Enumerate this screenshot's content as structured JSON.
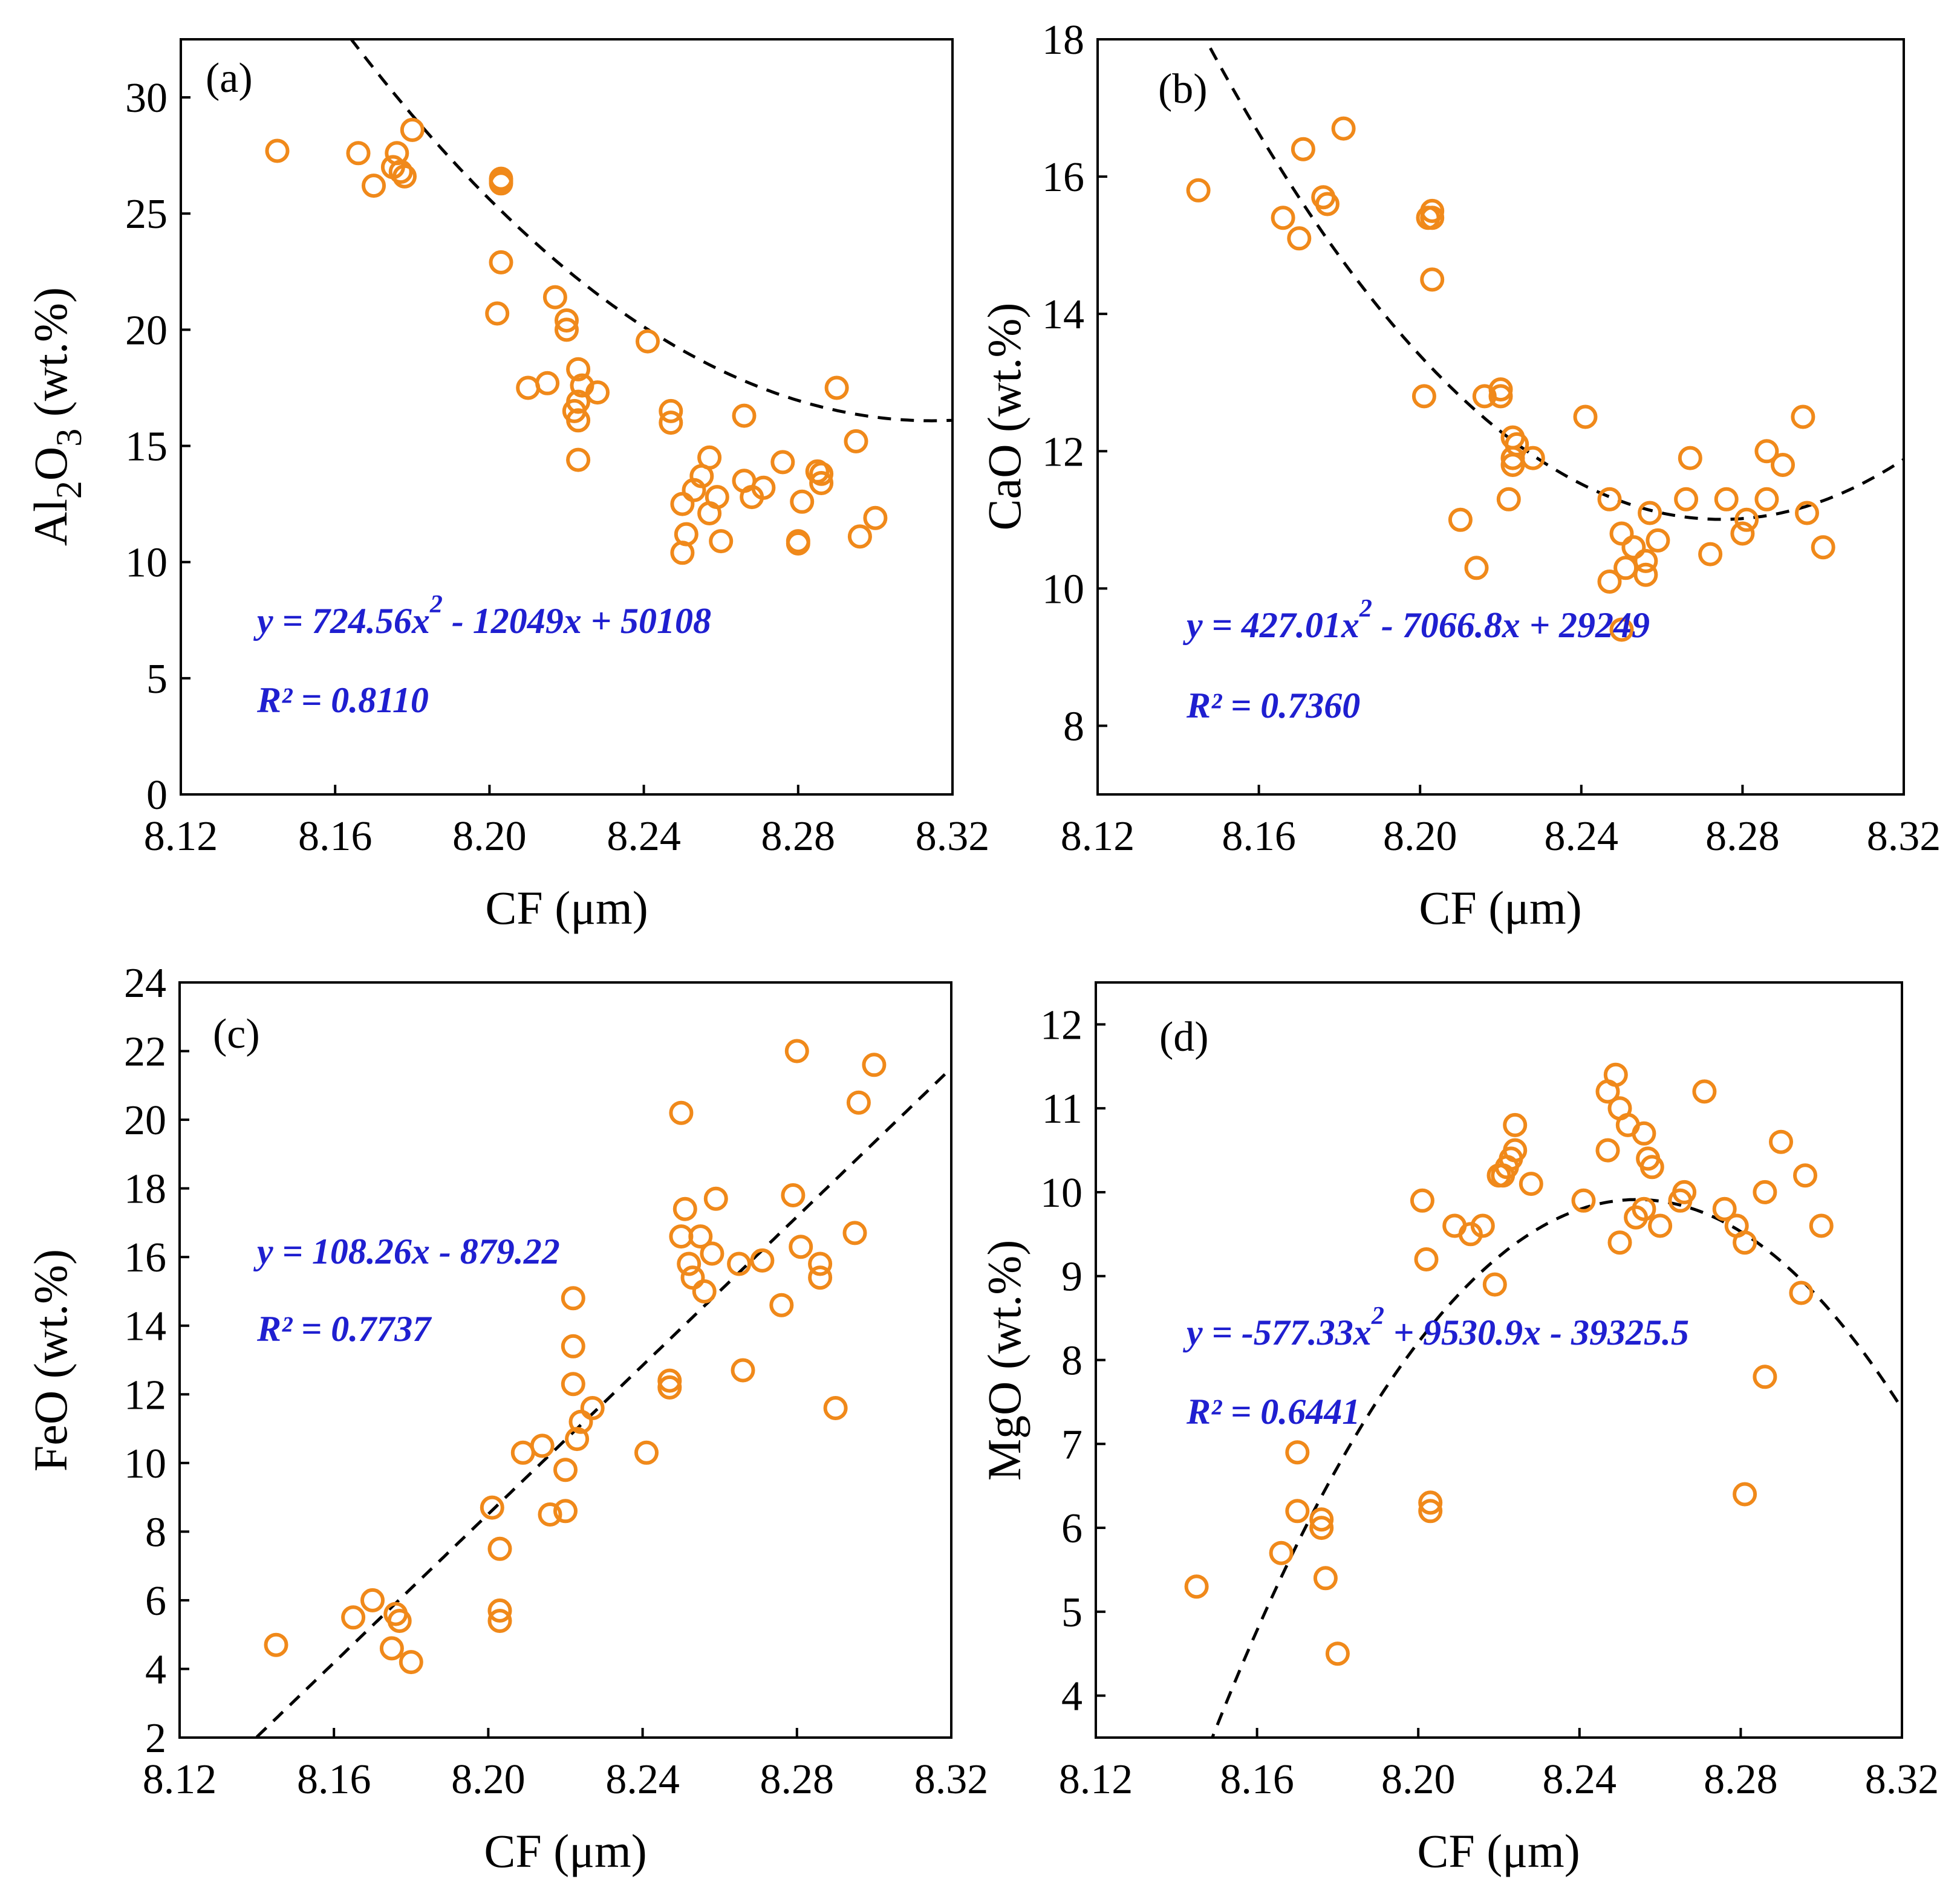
{
  "chart_data": [
    {
      "type": "scatter",
      "panel_label": "(a)",
      "xlabel": "CF (μm)",
      "ylabel": {
        "prefix": "Al",
        "sub1": "2",
        "mid": "O",
        "sub2": "3",
        "suffix": " (wt.%)"
      },
      "xlim": [
        8.12,
        8.32
      ],
      "ylim": [
        0,
        32.5
      ],
      "xticks": [
        "8.12",
        "8.16",
        "8.20",
        "8.24",
        "8.28",
        "8.32"
      ],
      "xtick_values": [
        8.12,
        8.16,
        8.2,
        8.24,
        8.28,
        8.32
      ],
      "yticks": [
        "0",
        "5",
        "10",
        "15",
        "20",
        "25",
        "30"
      ],
      "ytick_values": [
        0,
        5,
        10,
        15,
        20,
        25,
        30
      ],
      "marker_color": "#f0891a",
      "equation_color": "#1f1fd0",
      "equation": {
        "main": "y = 724.56x",
        "sup": "2",
        "rest": " - 12049x + 50108"
      },
      "r2": "R² = 0.8110",
      "fit": {
        "kind": "quadratic",
        "coeffs": [
          724.56,
          -12049,
          50108
        ],
        "x_range": [
          8.14,
          8.32
        ]
      },
      "x": [
        8.145,
        8.166,
        8.17,
        8.175,
        8.176,
        8.177,
        8.178,
        8.18,
        8.203,
        8.203,
        8.203,
        8.203,
        8.202,
        8.21,
        8.215,
        8.217,
        8.22,
        8.22,
        8.223,
        8.223,
        8.224,
        8.228,
        8.222,
        8.223,
        8.223,
        8.241,
        8.247,
        8.247,
        8.25,
        8.251,
        8.25,
        8.253,
        8.255,
        8.257,
        8.257,
        8.259,
        8.26,
        8.266,
        8.266,
        8.268,
        8.271,
        8.276,
        8.28,
        8.28,
        8.281,
        8.285,
        8.286,
        8.286,
        8.29,
        8.295,
        8.296,
        8.3
      ],
      "y": [
        27.7,
        27.6,
        26.2,
        27.0,
        27.6,
        26.8,
        26.6,
        28.6,
        26.5,
        26.4,
        26.3,
        22.9,
        20.7,
        17.5,
        17.7,
        21.4,
        20.4,
        20.0,
        18.3,
        16.9,
        17.6,
        17.3,
        16.5,
        16.1,
        14.4,
        19.5,
        16.5,
        16.0,
        10.4,
        11.2,
        12.5,
        13.1,
        13.7,
        14.5,
        12.1,
        12.8,
        10.9,
        16.3,
        13.5,
        12.8,
        13.2,
        14.3,
        10.8,
        10.9,
        12.6,
        13.9,
        13.4,
        13.8,
        17.5,
        15.2,
        11.1,
        11.9
      ]
    },
    {
      "type": "scatter",
      "panel_label": "(b)",
      "xlabel": "CF (μm)",
      "ylabel": "CaO (wt.%)",
      "xlim": [
        8.12,
        8.32
      ],
      "ylim": [
        7,
        18
      ],
      "xticks": [
        "8.12",
        "8.16",
        "8.20",
        "8.24",
        "8.28",
        "8.32"
      ],
      "xtick_values": [
        8.12,
        8.16,
        8.2,
        8.24,
        8.28,
        8.32
      ],
      "yticks": [
        "8",
        "10",
        "12",
        "14",
        "16",
        "18"
      ],
      "ytick_values": [
        8,
        10,
        12,
        14,
        16,
        18
      ],
      "marker_color": "#f0891a",
      "equation_color": "#1f1fd0",
      "equation": {
        "main": "y = 427.01x",
        "sup": "2",
        "rest": " - 7066.8x + 29249"
      },
      "r2": "R² = 0.7360",
      "fit": {
        "kind": "quadratic",
        "coeffs": [
          427.01,
          -7066.8,
          29249
        ],
        "x_range": [
          8.14,
          8.32
        ]
      },
      "x": [
        8.145,
        8.166,
        8.17,
        8.171,
        8.176,
        8.177,
        8.181,
        8.202,
        8.203,
        8.203,
        8.203,
        8.201,
        8.21,
        8.214,
        8.216,
        8.22,
        8.22,
        8.223,
        8.223,
        8.223,
        8.224,
        8.228,
        8.222,
        8.241,
        8.247,
        8.247,
        8.25,
        8.251,
        8.25,
        8.253,
        8.256,
        8.256,
        8.257,
        8.259,
        8.266,
        8.267,
        8.272,
        8.276,
        8.28,
        8.281,
        8.286,
        8.286,
        8.29,
        8.295,
        8.296,
        8.3
      ],
      "y": [
        15.8,
        15.4,
        15.1,
        16.4,
        15.7,
        15.6,
        16.7,
        15.4,
        15.5,
        14.5,
        15.4,
        12.8,
        11.0,
        10.3,
        12.8,
        12.8,
        12.9,
        12.2,
        11.9,
        11.8,
        12.1,
        11.9,
        11.3,
        12.5,
        11.3,
        10.1,
        9.4,
        10.3,
        10.8,
        10.6,
        10.2,
        10.4,
        11.1,
        10.7,
        11.3,
        11.9,
        10.5,
        11.3,
        10.8,
        11.0,
        11.3,
        12.0,
        11.8,
        12.5,
        11.1,
        10.6
      ]
    },
    {
      "type": "scatter",
      "panel_label": "(c)",
      "xlabel": "CF (μm)",
      "ylabel": "FeO (wt.%)",
      "xlim": [
        8.12,
        8.32
      ],
      "ylim": [
        2,
        24
      ],
      "xticks": [
        "8.12",
        "8.16",
        "8.20",
        "8.24",
        "8.28",
        "8.32"
      ],
      "xtick_values": [
        8.12,
        8.16,
        8.2,
        8.24,
        8.28,
        8.32
      ],
      "yticks": [
        "2",
        "4",
        "6",
        "8",
        "10",
        "12",
        "14",
        "16",
        "18",
        "20",
        "22",
        "24"
      ],
      "ytick_values": [
        2,
        4,
        6,
        8,
        10,
        12,
        14,
        16,
        18,
        20,
        22,
        24
      ],
      "marker_color": "#f0891a",
      "equation_color": "#1f1fd0",
      "equation": {
        "main": "y =  108.26x - 879.22",
        "sup": "",
        "rest": ""
      },
      "r2": "R² = 0.7737",
      "fit": {
        "kind": "linear",
        "coeffs": [
          108.26,
          -879.22
        ],
        "x_range": [
          8.14,
          8.32
        ]
      },
      "x": [
        8.145,
        8.165,
        8.17,
        8.175,
        8.176,
        8.177,
        8.18,
        8.201,
        8.203,
        8.203,
        8.203,
        8.209,
        8.214,
        8.216,
        8.22,
        8.22,
        8.222,
        8.222,
        8.222,
        8.223,
        8.224,
        8.227,
        8.241,
        8.247,
        8.247,
        8.25,
        8.25,
        8.251,
        8.252,
        8.253,
        8.255,
        8.256,
        8.258,
        8.259,
        8.265,
        8.266,
        8.271,
        8.276,
        8.279,
        8.28,
        8.281,
        8.286,
        8.286,
        8.29,
        8.295,
        8.296,
        8.3
      ],
      "y": [
        4.7,
        5.5,
        6.0,
        4.6,
        5.6,
        5.4,
        4.2,
        8.7,
        7.5,
        5.7,
        5.4,
        10.3,
        10.5,
        8.5,
        9.8,
        8.6,
        14.8,
        13.4,
        12.3,
        10.7,
        11.2,
        11.6,
        10.3,
        12.4,
        12.2,
        20.2,
        16.6,
        17.4,
        15.8,
        15.4,
        16.6,
        15.0,
        16.1,
        17.7,
        15.8,
        12.7,
        15.9,
        14.6,
        17.8,
        22.0,
        16.3,
        15.8,
        15.4,
        11.6,
        16.7,
        20.5,
        21.6
      ]
    },
    {
      "type": "scatter",
      "panel_label": "(d)",
      "xlabel": "CF (μm)",
      "ylabel": "MgO (wt.%)",
      "xlim": [
        8.12,
        8.32
      ],
      "ylim": [
        3.5,
        12.5
      ],
      "xticks": [
        "8.12",
        "8.16",
        "8.20",
        "8.24",
        "8.28",
        "8.32"
      ],
      "xtick_values": [
        8.12,
        8.16,
        8.2,
        8.24,
        8.28,
        8.32
      ],
      "yticks": [
        "4",
        "5",
        "6",
        "7",
        "8",
        "9",
        "10",
        "11",
        "12"
      ],
      "ytick_values": [
        4,
        5,
        6,
        7,
        8,
        9,
        10,
        11,
        12
      ],
      "marker_color": "#f0891a",
      "equation_color": "#1f1fd0",
      "equation": {
        "main": "y = -577.33x",
        "sup": "2",
        "rest": " + 9530.9x - 39325.5"
      },
      "r2": "R² = 0.6441",
      "fit": {
        "kind": "quadratic",
        "coeffs": [
          -577.33,
          9530.9,
          -39325.5
        ],
        "x_range": [
          8.14,
          8.32
        ]
      },
      "x": [
        8.145,
        8.166,
        8.17,
        8.17,
        8.176,
        8.176,
        8.177,
        8.18,
        8.201,
        8.202,
        8.203,
        8.203,
        8.209,
        8.213,
        8.216,
        8.219,
        8.22,
        8.221,
        8.222,
        8.223,
        8.224,
        8.224,
        8.228,
        8.241,
        8.247,
        8.247,
        8.249,
        8.25,
        8.25,
        8.252,
        8.254,
        8.256,
        8.256,
        8.257,
        8.258,
        8.26,
        8.265,
        8.266,
        8.271,
        8.276,
        8.279,
        8.281,
        8.281,
        8.286,
        8.286,
        8.29,
        8.295,
        8.296,
        8.3
      ],
      "y": [
        5.3,
        5.7,
        6.9,
        6.2,
        6.1,
        6.0,
        5.4,
        4.5,
        9.9,
        9.2,
        6.3,
        6.2,
        9.6,
        9.5,
        9.6,
        8.9,
        10.2,
        10.2,
        10.3,
        10.4,
        10.5,
        10.8,
        10.1,
        9.9,
        11.2,
        10.5,
        11.4,
        11.0,
        9.4,
        10.8,
        9.7,
        9.8,
        10.7,
        10.4,
        10.3,
        9.6,
        9.9,
        10.0,
        11.2,
        9.8,
        9.6,
        9.4,
        6.4,
        7.8,
        10.0,
        10.6,
        8.8,
        10.2,
        9.6
      ]
    }
  ]
}
